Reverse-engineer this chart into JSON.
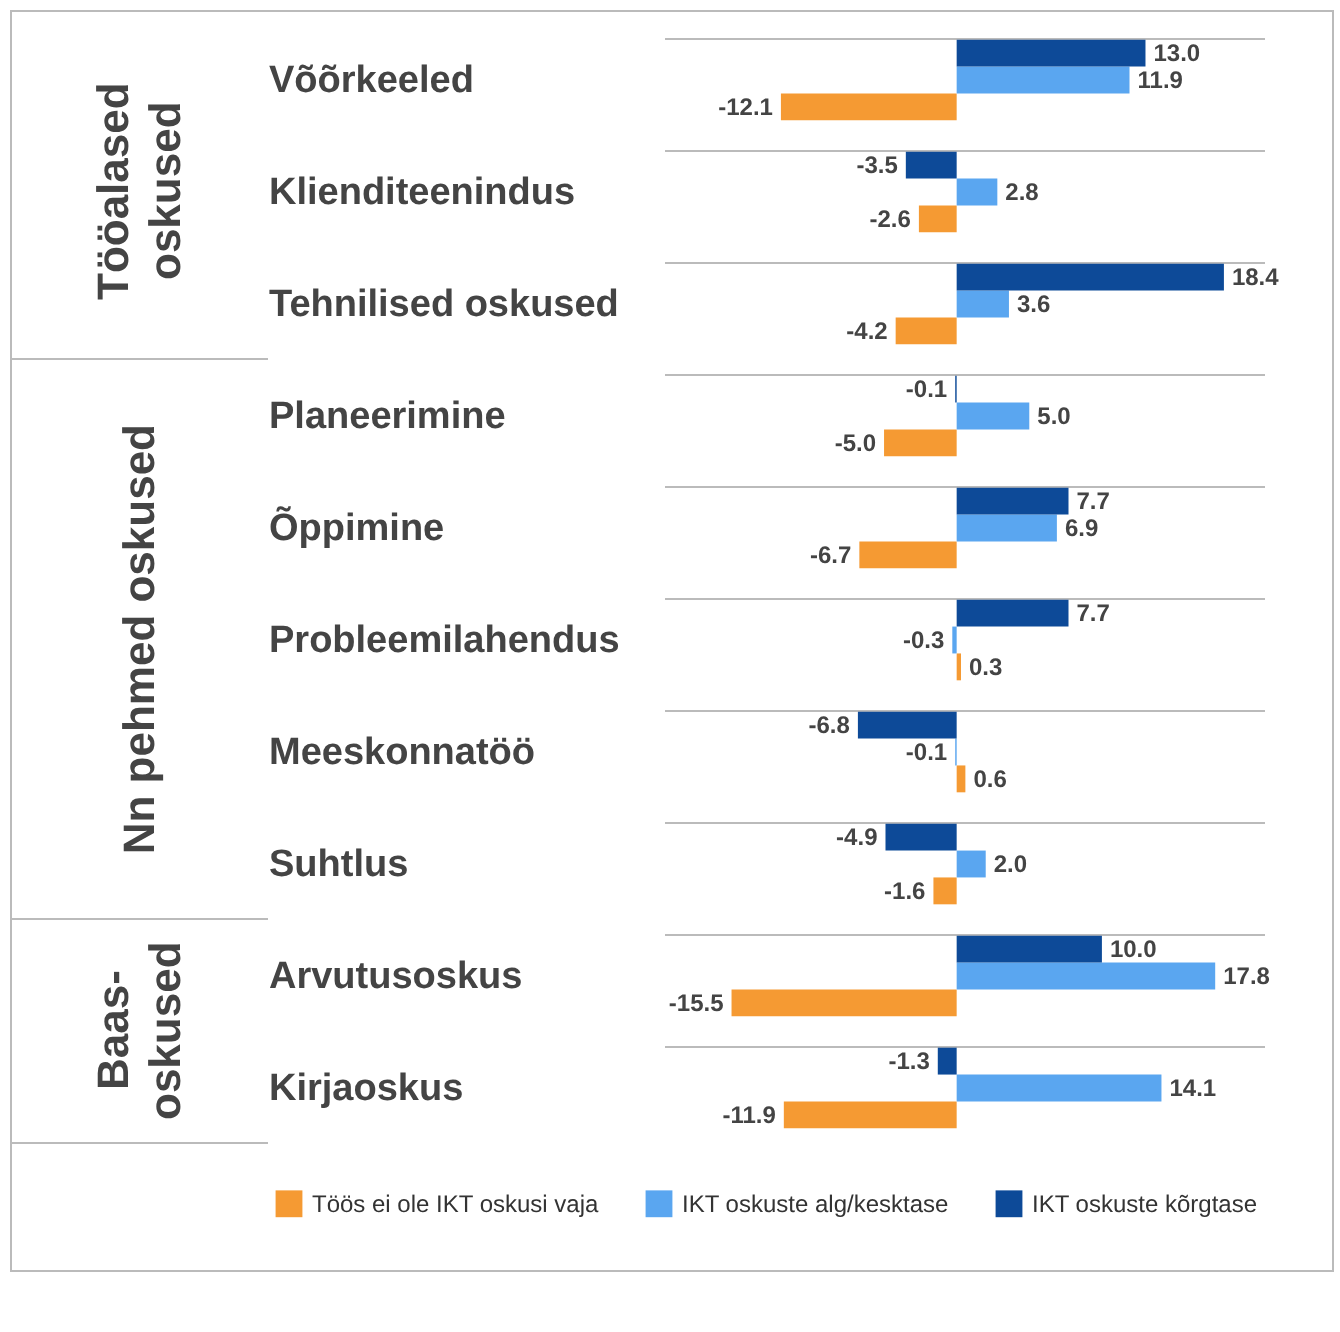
{
  "chart_data": {
    "type": "bar",
    "orientation": "horizontal",
    "legend": "bottom",
    "categories": [
      "Võõrkeeled",
      "Klienditeenindus",
      "Tehnilised oskused",
      "Planeerimine",
      "Õppimine",
      "Probleemilahendus",
      "Meeskonnatöö",
      "Suhtlus",
      "Arvutusoskus",
      "Kirjaoskus"
    ],
    "series": [
      {
        "name": "Töös ei ole IKT oskusi vaja",
        "color": "#f59a33",
        "values": [
          -12.1,
          -2.6,
          -4.2,
          -5.0,
          -6.7,
          0.3,
          0.6,
          -1.6,
          -15.5,
          -11.9
        ],
        "value_labels": [
          "-12.1",
          "-2.6",
          "-4.2",
          "-5.0",
          "-6.7",
          "0.3",
          "0.6",
          "-1.6",
          "-15.5",
          "-11.9"
        ]
      },
      {
        "name": "IKT oskuste alg/kesktase",
        "color": "#5aa6f0",
        "values": [
          11.9,
          2.8,
          3.6,
          5.0,
          6.9,
          -0.3,
          -0.1,
          2.0,
          17.8,
          14.1
        ],
        "value_labels": [
          "11.9",
          "2.8",
          "3.6",
          "5.0",
          "6.9",
          "-0.3",
          "-0.1",
          "2.0",
          "17.8",
          "14.1"
        ]
      },
      {
        "name": "IKT oskuste kõrgtase",
        "color": "#0d4a98",
        "values": [
          13.0,
          -3.5,
          18.4,
          -0.1,
          7.7,
          7.7,
          -6.8,
          -4.9,
          10.0,
          -1.3
        ],
        "value_labels": [
          "13.0",
          "-3.5",
          "18.4",
          "-0.1",
          "7.7",
          "7.7",
          "-6.8",
          "-4.9",
          "10.0",
          "-1.3"
        ]
      }
    ],
    "annotations": [
      "Tööalased oskused",
      "Nn pehmed oskused",
      "Baas-oskused"
    ]
  }
}
